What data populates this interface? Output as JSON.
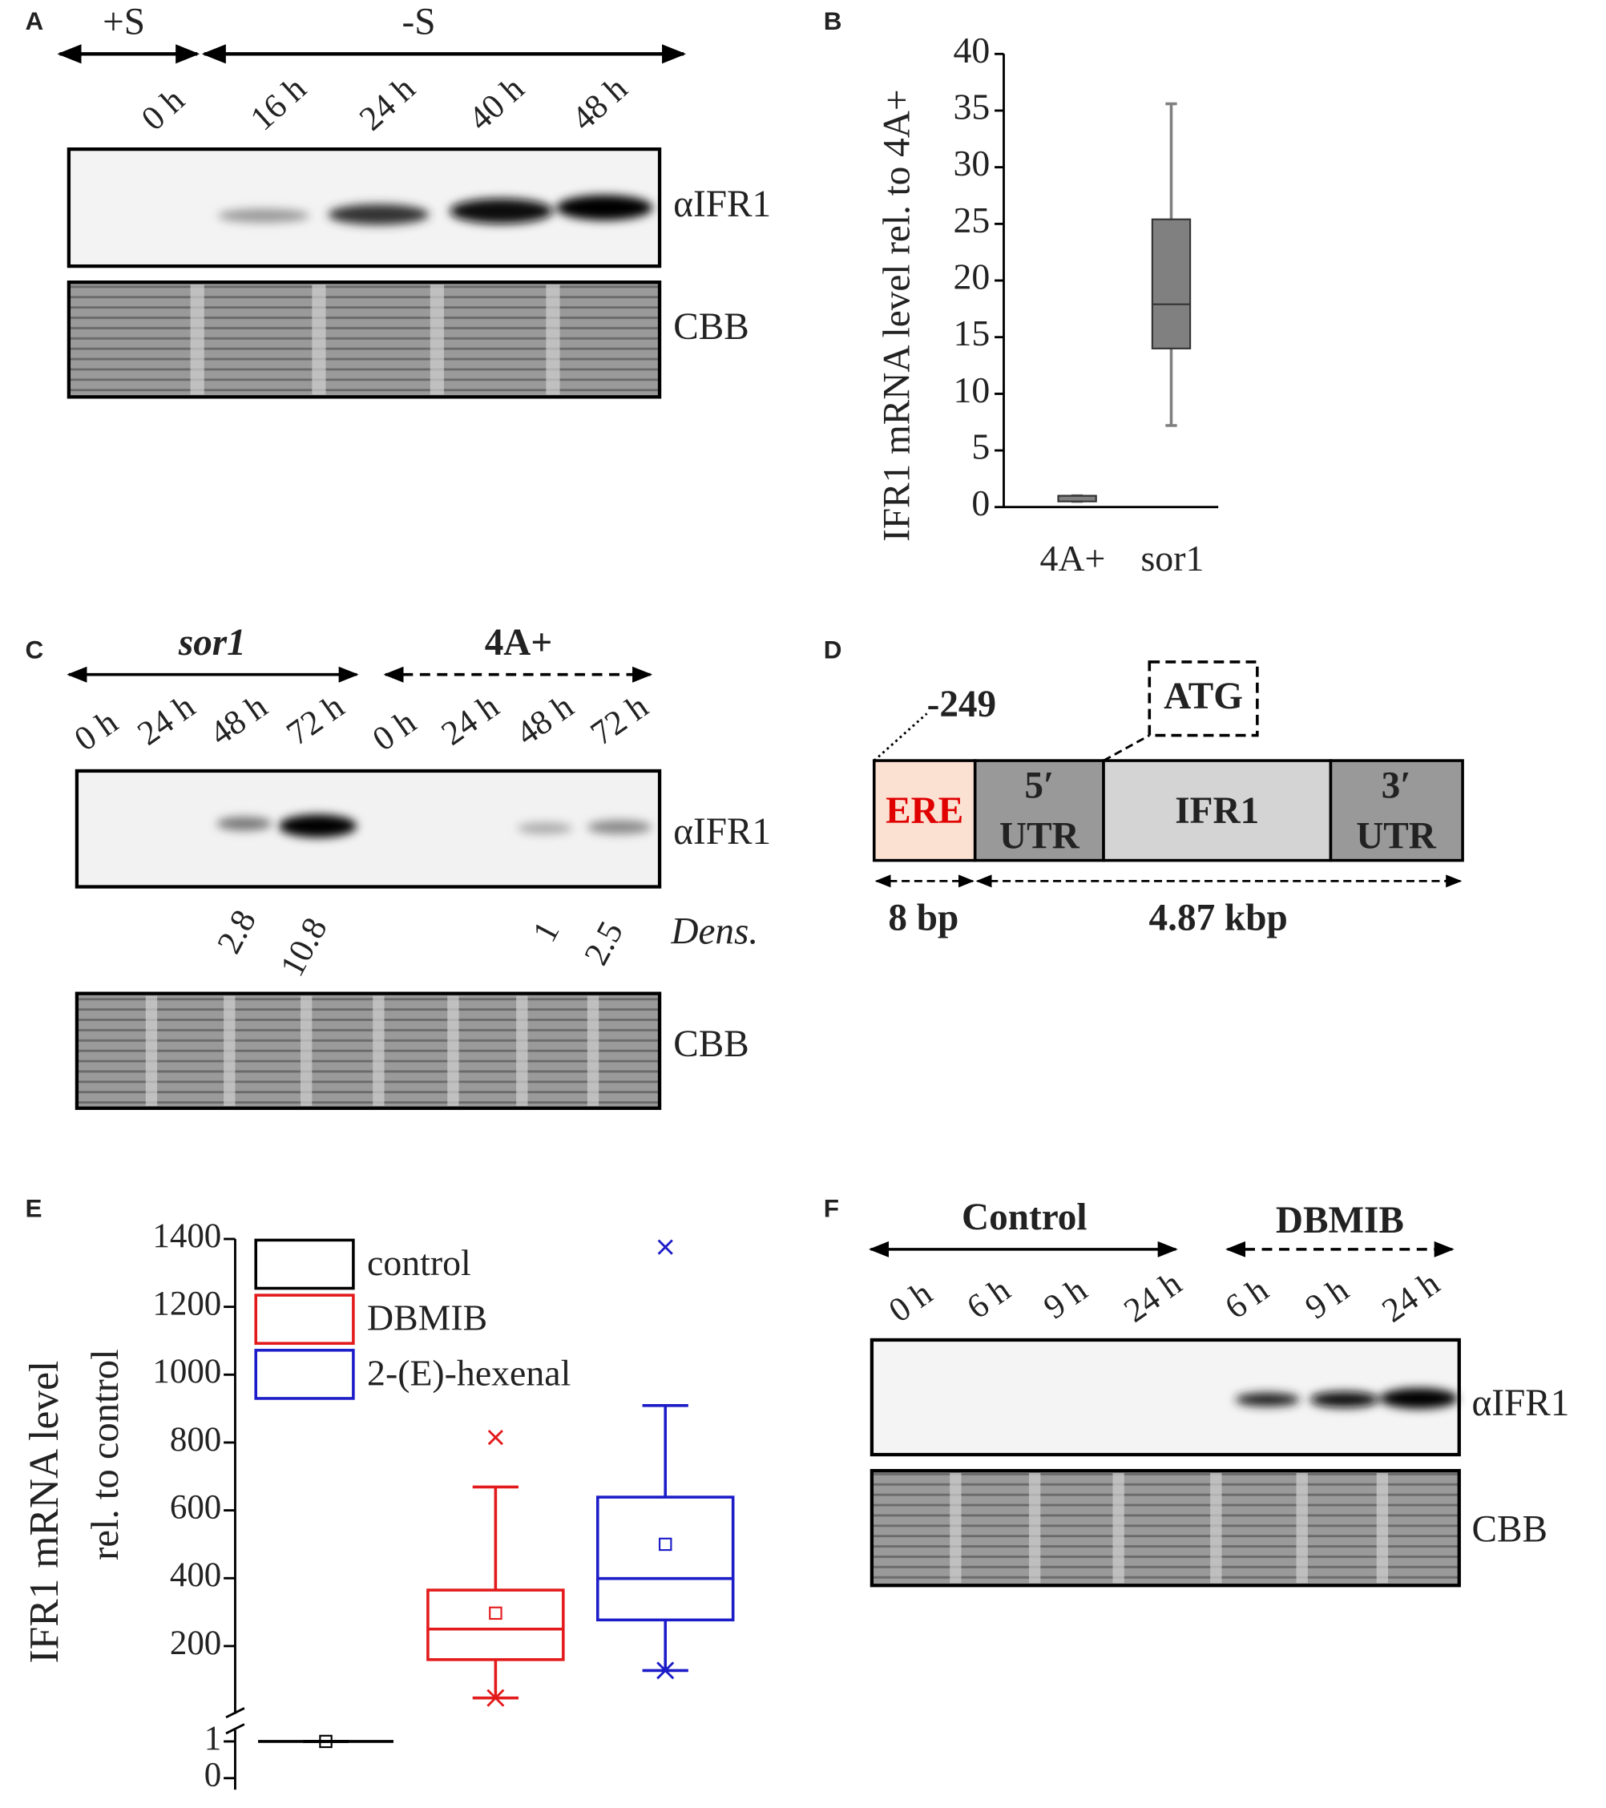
{
  "panels": {
    "A": {
      "letter": "A",
      "conditions": [
        "+S",
        "-S"
      ],
      "lanes": [
        "0 h",
        "16 h",
        "24 h",
        "40 h",
        "48 h"
      ],
      "blots": [
        "αIFR1",
        "CBB"
      ]
    },
    "C": {
      "letter": "C",
      "groups": [
        "sor1",
        "4A+"
      ],
      "lanes": [
        "0 h",
        "24 h",
        "48 h",
        "72 h",
        "0 h",
        "24 h",
        "48 h",
        "72 h"
      ],
      "density_label": "Dens.",
      "densities": [
        2.8,
        10.8,
        1,
        2.5
      ],
      "blots": [
        "αIFR1",
        "CBB"
      ]
    },
    "D": {
      "letter": "D",
      "position": "-249",
      "start_codon": "ATG",
      "segments": [
        {
          "line1": "ERE"
        },
        {
          "line1": "5′",
          "line2": "UTR"
        },
        {
          "line1": "IFR1"
        },
        {
          "line1": "3′",
          "line2": "UTR"
        }
      ],
      "lengths": [
        "8 bp",
        "4.87 kbp"
      ]
    },
    "F": {
      "letter": "F",
      "groups": [
        "Control",
        "DBMIB"
      ],
      "lanes": [
        "0 h",
        "6 h",
        "9 h",
        "24 h",
        "6 h",
        "9 h",
        "24 h"
      ],
      "blots": [
        "αIFR1",
        "CBB"
      ]
    }
  },
  "chart_data": [
    {
      "type": "box",
      "letter": "B",
      "ylabel": "IFR1 mRNA level rel. to 4A+",
      "categories": [
        "4A+",
        "sor1"
      ],
      "color": "#808080",
      "whislo": [
        0.5,
        7.2
      ],
      "q1": [
        0.5,
        14
      ],
      "median": [
        1,
        17.9
      ],
      "q3": [
        1,
        25.4
      ],
      "whishi": [
        1,
        35.6
      ],
      "ylim": [
        0,
        40
      ],
      "yticks": [
        0,
        5,
        10,
        15,
        20,
        25,
        30,
        35,
        40
      ]
    },
    {
      "type": "box",
      "letter": "E",
      "ylabel": [
        "IFR1 mRNA level",
        "rel. to control"
      ],
      "series": [
        {
          "name": "control",
          "color": "#000000",
          "whislo": 1,
          "q1": 1,
          "median": 1,
          "q3": 1,
          "whishi": 1,
          "mean": 1,
          "outliers": []
        },
        {
          "name": "DBMIB",
          "color": "#e31a1c",
          "whislo": 47,
          "q1": 160,
          "median": 250,
          "q3": 365,
          "whishi": 669,
          "mean": 297,
          "outliers": [
            815,
            47
          ]
        },
        {
          "name": "2-(E)-hexenal",
          "color": "#1c1cc8",
          "whislo": 128,
          "q1": 277,
          "median": 399,
          "q3": 639,
          "whishi": 909,
          "mean": 500,
          "outliers": [
            1376,
            128
          ]
        }
      ],
      "outlier_symbols": [
        "x",
        "star"
      ],
      "ylim": [
        0,
        1400
      ],
      "yticks": [
        200,
        400,
        600,
        800,
        1000,
        1200,
        1400
      ],
      "ylim_low": [
        0,
        1
      ],
      "yticks_low": [
        0,
        1
      ]
    }
  ]
}
